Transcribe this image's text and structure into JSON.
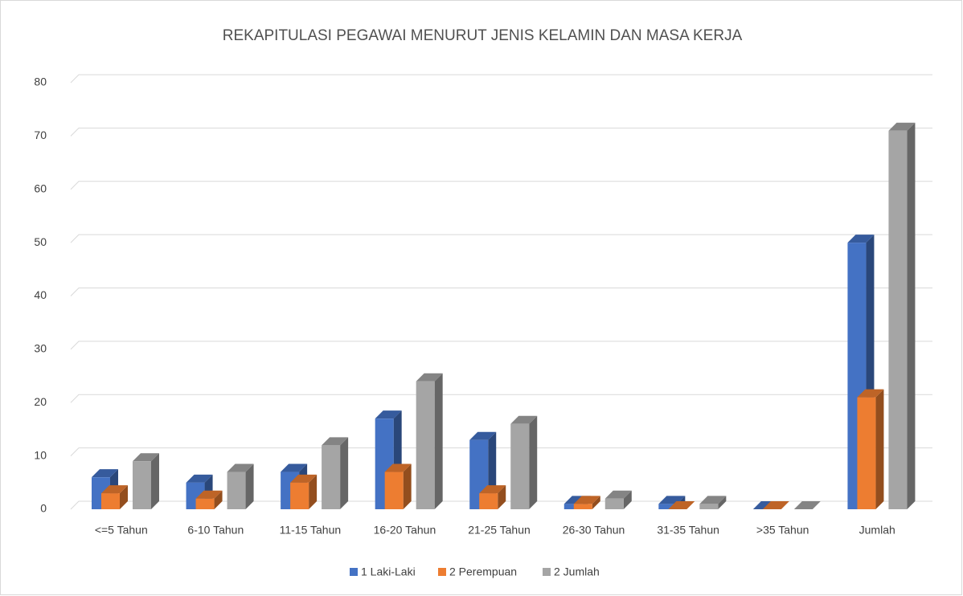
{
  "chart_data": {
    "type": "bar3d",
    "title": "REKAPITULASI PEGAWAI MENURUT JENIS KELAMIN DAN MASA KERJA",
    "categories": [
      "<=5 Tahun",
      "6-10 Tahun",
      "11-15 Tahun",
      "16-20 Tahun",
      "21-25 Tahun",
      "26-30 Tahun",
      "31-35 Tahun",
      ">35 Tahun",
      "Jumlah"
    ],
    "series": [
      {
        "name": "1 Laki-Laki",
        "color": "#4472c4",
        "values": [
          6,
          5,
          7,
          17,
          13,
          1,
          1,
          0,
          50
        ]
      },
      {
        "name": "2 Perempuan",
        "color": "#ed7d31",
        "values": [
          3,
          2,
          5,
          7,
          3,
          1,
          0,
          0,
          21
        ]
      },
      {
        "name": "2 Jumlah",
        "color": "#a5a5a5",
        "values": [
          9,
          7,
          12,
          24,
          16,
          2,
          1,
          0,
          71
        ]
      }
    ],
    "ylim": [
      0,
      80
    ],
    "yticks": [
      0,
      10,
      20,
      30,
      40,
      50,
      60,
      70,
      80
    ],
    "grid": true,
    "legend": "bottom"
  }
}
